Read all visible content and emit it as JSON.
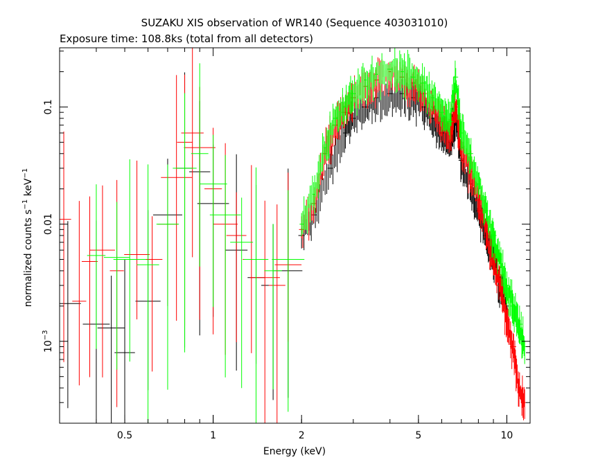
{
  "chart_data": {
    "type": "scatter",
    "title": "SUZAKU XIS observation of WR140 (Sequence 403031010)",
    "subtitle": "Exposure time: 108.8ks (total from all detectors)",
    "xlabel": "Energy (keV)",
    "ylabel_main": "normalized counts s",
    "ylabel_sup1": "−1",
    "ylabel_mid": " keV",
    "ylabel_sup2": "−1",
    "xscale": "log",
    "yscale": "log",
    "xlim": [
      0.3,
      12
    ],
    "ylim": [
      0.0002,
      0.32
    ],
    "x_ticks": [
      {
        "value": 0.5,
        "label": "0.5"
      },
      {
        "value": 1,
        "label": "1"
      },
      {
        "value": 2,
        "label": "2"
      },
      {
        "value": 5,
        "label": "5"
      },
      {
        "value": 10,
        "label": "10"
      }
    ],
    "y_ticks": [
      {
        "value": 0.1,
        "label": "0.1"
      },
      {
        "value": 0.01,
        "label": "0.01"
      },
      {
        "value": 0.001,
        "label_base": "10",
        "label_sup": "−3"
      }
    ],
    "grid": false,
    "legend": "none",
    "series": [
      {
        "color": "#000000",
        "x": [
          0.32,
          0.4,
          0.45,
          0.5,
          0.6,
          0.7,
          0.8,
          0.9,
          1.0,
          1.2,
          1.4,
          1.6,
          1.8,
          2.0,
          2.2,
          2.5,
          2.8,
          3.0,
          3.3,
          3.6,
          4.0,
          4.4,
          4.8,
          5.2,
          5.6,
          6.0,
          6.4,
          6.7,
          7.0,
          7.5,
          8.0,
          8.5,
          9.0,
          9.5,
          10.0
        ],
        "y": [
          0.0021,
          0.0014,
          0.0013,
          0.0008,
          0.0022,
          0.012,
          0.03,
          0.028,
          0.015,
          0.006,
          0.0035,
          0.003,
          0.004,
          0.008,
          0.012,
          0.03,
          0.06,
          0.08,
          0.1,
          0.12,
          0.13,
          0.13,
          0.12,
          0.1,
          0.08,
          0.06,
          0.05,
          0.08,
          0.035,
          0.022,
          0.013,
          0.008,
          0.005,
          0.003,
          0.002
        ]
      },
      {
        "color": "#ff0000",
        "x": [
          0.31,
          0.35,
          0.38,
          0.42,
          0.47,
          0.55,
          0.62,
          0.7,
          0.75,
          0.8,
          0.85,
          0.9,
          1.0,
          1.1,
          1.2,
          1.35,
          1.5,
          1.65,
          1.8,
          2.0,
          2.2,
          2.4,
          2.6,
          2.8,
          3.0,
          3.3,
          3.6,
          4.0,
          4.4,
          4.8,
          5.2,
          5.6,
          6.0,
          6.4,
          6.7,
          7.0,
          7.5,
          8.0,
          8.5,
          9.0,
          9.5,
          10.0,
          10.5,
          11.0,
          11.5
        ],
        "y": [
          0.011,
          0.0022,
          0.0048,
          0.006,
          0.004,
          0.0055,
          0.005,
          0.01,
          0.025,
          0.05,
          0.06,
          0.045,
          0.02,
          0.01,
          0.008,
          0.005,
          0.0035,
          0.003,
          0.0045,
          0.009,
          0.015,
          0.04,
          0.07,
          0.09,
          0.12,
          0.15,
          0.17,
          0.2,
          0.18,
          0.16,
          0.13,
          0.1,
          0.075,
          0.06,
          0.1,
          0.045,
          0.028,
          0.016,
          0.009,
          0.005,
          0.003,
          0.0015,
          0.0009,
          0.0004,
          0.0003
        ]
      },
      {
        "color": "#00ff00",
        "x": [
          0.4,
          0.47,
          0.52,
          0.6,
          0.7,
          0.8,
          0.9,
          1.0,
          1.1,
          1.25,
          1.4,
          1.6,
          1.8,
          2.0,
          2.2,
          2.4,
          2.6,
          2.8,
          3.0,
          3.3,
          3.6,
          4.0,
          4.4,
          4.8,
          5.2,
          5.6,
          6.0,
          6.4,
          6.7,
          7.0,
          7.5,
          8.0,
          8.5,
          9.0,
          9.5,
          10.0,
          10.5,
          11.0,
          11.5
        ],
        "y": [
          0.0054,
          0.0052,
          0.005,
          0.0045,
          0.01,
          0.03,
          0.04,
          0.022,
          0.012,
          0.007,
          0.005,
          0.004,
          0.005,
          0.01,
          0.018,
          0.045,
          0.08,
          0.1,
          0.13,
          0.17,
          0.19,
          0.21,
          0.2,
          0.18,
          0.16,
          0.12,
          0.09,
          0.075,
          0.18,
          0.06,
          0.04,
          0.022,
          0.013,
          0.008,
          0.005,
          0.003,
          0.002,
          0.0014,
          0.0009
        ]
      }
    ]
  }
}
